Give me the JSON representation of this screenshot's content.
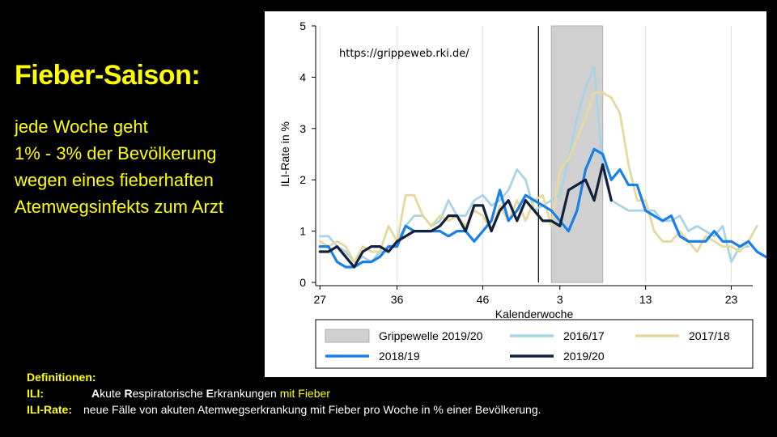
{
  "slide": {
    "title": "Fieber-Saison:",
    "bullets": [
      "jede Woche geht",
      "1% - 3% der Bevölkerung",
      "wegen eines fieberhaften",
      "Atemwegsinfekts zum Arzt"
    ],
    "definitions": {
      "heading": "Definitionen:",
      "ili_label": "ILI:",
      "ili_parts": [
        "A",
        "kute ",
        "R",
        "espiratorische ",
        "E",
        "rkrankungen "
      ],
      "ili_highlight": "mit Fieber",
      "rate_label": "ILI-Rate:",
      "rate_text": "neue Fälle von akuten Atemwegserkrankung mit Fieber pro Woche in % einer Bevölkerung."
    }
  },
  "colors": {
    "background": "#000000",
    "slide_text": "#ffff00",
    "s2016": "#a8d4e4",
    "s2017": "#e6d9a0",
    "s2018": "#1a7fe8",
    "s2019": "#14213d",
    "epidemic": "#d0d0d0"
  },
  "chart_data": {
    "type": "line",
    "source_text": "https://grippeweb.rki.de/",
    "xlabel": "Kalenderwoche",
    "ylabel": "ILI-Rate in %",
    "ylim": [
      0,
      5
    ],
    "yticks": [
      "0",
      "1",
      "2",
      "3",
      "4",
      "5"
    ],
    "xticks": [
      {
        "label": "27",
        "week_index": 27
      },
      {
        "label": "36",
        "week_index": 36
      },
      {
        "label": "46",
        "week_index": 46
      },
      {
        "label": "3",
        "week_index": 55
      },
      {
        "label": "13",
        "week_index": 65
      },
      {
        "label": "23",
        "week_index": 75
      }
    ],
    "x_axis_note": "season weeks; week 27 of first year through week 25 of following year (week 3 = 55th index)",
    "xlim": [
      26.5,
      77.5
    ],
    "year_boundary_week_index": 52.5,
    "epidemic_band": {
      "name": "Grippewelle 2019/20",
      "from_week_index": 54,
      "to_week_index": 60,
      "ymax": 5
    },
    "legend_placement": "bottom",
    "series": [
      {
        "name": "2016/17",
        "color_key": "s2016",
        "start_week_index": 27,
        "values": [
          0.9,
          0.9,
          0.7,
          0.6,
          0.4,
          0.5,
          0.4,
          0.6,
          0.6,
          0.8,
          1.1,
          1.3,
          1.3,
          1.1,
          1.2,
          1.6,
          1.3,
          1.3,
          1.6,
          1.7,
          1.5,
          1.6,
          1.8,
          2.2,
          2.0,
          1.4,
          1.5,
          1.6,
          1.7,
          2.4,
          3.2,
          3.8,
          4.2,
          2.2,
          1.6,
          1.5,
          1.4,
          1.4,
          1.4,
          1.4,
          1.2,
          1.2,
          1.3,
          1.0,
          1.1,
          1.0,
          0.9,
          1.1,
          0.4,
          0.7,
          0.7
        ]
      },
      {
        "name": "2017/18",
        "color_key": "s2017",
        "start_week_index": 27,
        "values": [
          0.8,
          0.7,
          0.8,
          0.7,
          0.4,
          0.7,
          0.6,
          0.6,
          1.1,
          0.8,
          1.7,
          1.7,
          1.3,
          1.1,
          1.3,
          1.2,
          1.3,
          1.1,
          1.4,
          1.3,
          1.0,
          1.5,
          1.2,
          1.6,
          1.2,
          1.6,
          1.7,
          1.1,
          2.2,
          2.4,
          2.8,
          3.2,
          3.7,
          3.7,
          3.6,
          3.3,
          2.3,
          1.6,
          1.6,
          1.0,
          0.8,
          0.8,
          1.0,
          0.8,
          0.6,
          0.9,
          0.8,
          0.7,
          0.7,
          0.6,
          0.8,
          1.1
        ]
      },
      {
        "name": "2018/19",
        "color_key": "s2018",
        "start_week_index": 27,
        "values": [
          0.7,
          0.7,
          0.4,
          0.3,
          0.3,
          0.4,
          0.4,
          0.5,
          0.7,
          0.7,
          1.1,
          1.0,
          1.0,
          1.0,
          1.0,
          0.9,
          1.0,
          1.0,
          0.8,
          1.0,
          1.2,
          1.8,
          1.2,
          1.4,
          1.7,
          1.6,
          1.5,
          1.4,
          1.2,
          1.0,
          1.4,
          2.2,
          2.6,
          2.5,
          2.0,
          2.2,
          1.9,
          1.9,
          1.4,
          1.3,
          1.2,
          1.3,
          0.9,
          0.8,
          0.8,
          0.8,
          1.0,
          0.8,
          0.8,
          0.7,
          0.8,
          0.6,
          0.5
        ]
      },
      {
        "name": "2019/20",
        "color_key": "s2019",
        "start_week_index": 27,
        "values": [
          0.6,
          0.6,
          0.7,
          0.5,
          0.3,
          0.6,
          0.7,
          0.7,
          0.6,
          0.8,
          0.9,
          1.0,
          1.0,
          1.0,
          1.1,
          1.3,
          1.3,
          1.0,
          1.5,
          1.5,
          1.0,
          1.4,
          1.6,
          1.2,
          1.6,
          1.4,
          1.2,
          1.2,
          1.1,
          1.8,
          1.9,
          2.0,
          1.6,
          2.3,
          1.6
        ]
      }
    ]
  }
}
